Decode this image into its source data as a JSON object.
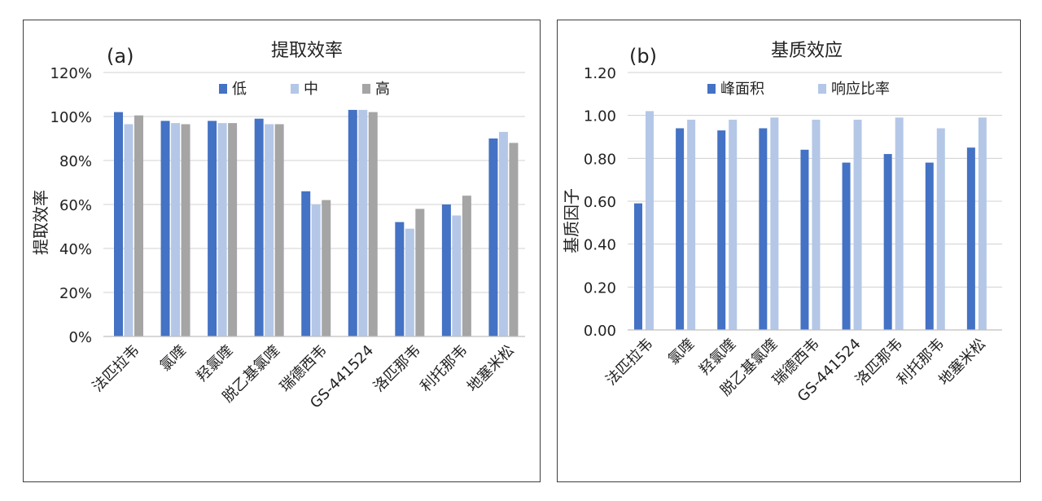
{
  "chart_data": [
    {
      "type": "bar",
      "panel_label": "(a)",
      "title": "提取效率",
      "xlabel": "",
      "ylabel": "提取效率",
      "categories": [
        "法匹拉韦",
        "氯喹",
        "羟氯喹",
        "脱乙基氯喹",
        "瑞德西韦",
        "GS-441524",
        "洛匹那韦",
        "利托那韦",
        "地塞米松"
      ],
      "series": [
        {
          "name": "低",
          "color": "#4472c4",
          "values": [
            102,
            98,
            98,
            99,
            66,
            103,
            52,
            60,
            90
          ]
        },
        {
          "name": "中",
          "color": "#b4c7e7",
          "values": [
            96.5,
            97,
            97,
            96.5,
            60,
            103,
            49,
            55,
            93
          ]
        },
        {
          "name": "高",
          "color": "#a5a5a5",
          "values": [
            100.5,
            96.5,
            97,
            96.5,
            62,
            102,
            58,
            64,
            88
          ]
        }
      ],
      "ylim": [
        0,
        120
      ],
      "yticks": [
        0,
        20,
        40,
        60,
        80,
        100,
        120
      ],
      "ytick_labels": [
        "0%",
        "20%",
        "40%",
        "60%",
        "80%",
        "100%",
        "120%"
      ],
      "grid": true,
      "legend": "top"
    },
    {
      "type": "bar",
      "panel_label": "(b)",
      "title": "基质效应",
      "xlabel": "",
      "ylabel": "基质因子",
      "categories": [
        "法匹拉韦",
        "氯喹",
        "羟氯喹",
        "脱乙基氯喹",
        "瑞德西韦",
        "GS-441524",
        "洛匹那韦",
        "利托那韦",
        "地塞米松"
      ],
      "series": [
        {
          "name": "峰面积",
          "color": "#4472c4",
          "values": [
            0.59,
            0.94,
            0.93,
            0.94,
            0.84,
            0.78,
            0.82,
            0.78,
            0.85
          ]
        },
        {
          "name": "响应比率",
          "color": "#b4c7e7",
          "values": [
            1.02,
            0.98,
            0.98,
            0.99,
            0.98,
            0.98,
            0.99,
            0.94,
            0.99
          ]
        }
      ],
      "ylim": [
        0,
        1.2
      ],
      "yticks": [
        0,
        0.2,
        0.4,
        0.6,
        0.8,
        1.0,
        1.2
      ],
      "ytick_labels": [
        "0.00",
        "0.20",
        "0.40",
        "0.60",
        "0.80",
        "1.00",
        "1.20"
      ],
      "grid": true,
      "legend": "top"
    }
  ]
}
